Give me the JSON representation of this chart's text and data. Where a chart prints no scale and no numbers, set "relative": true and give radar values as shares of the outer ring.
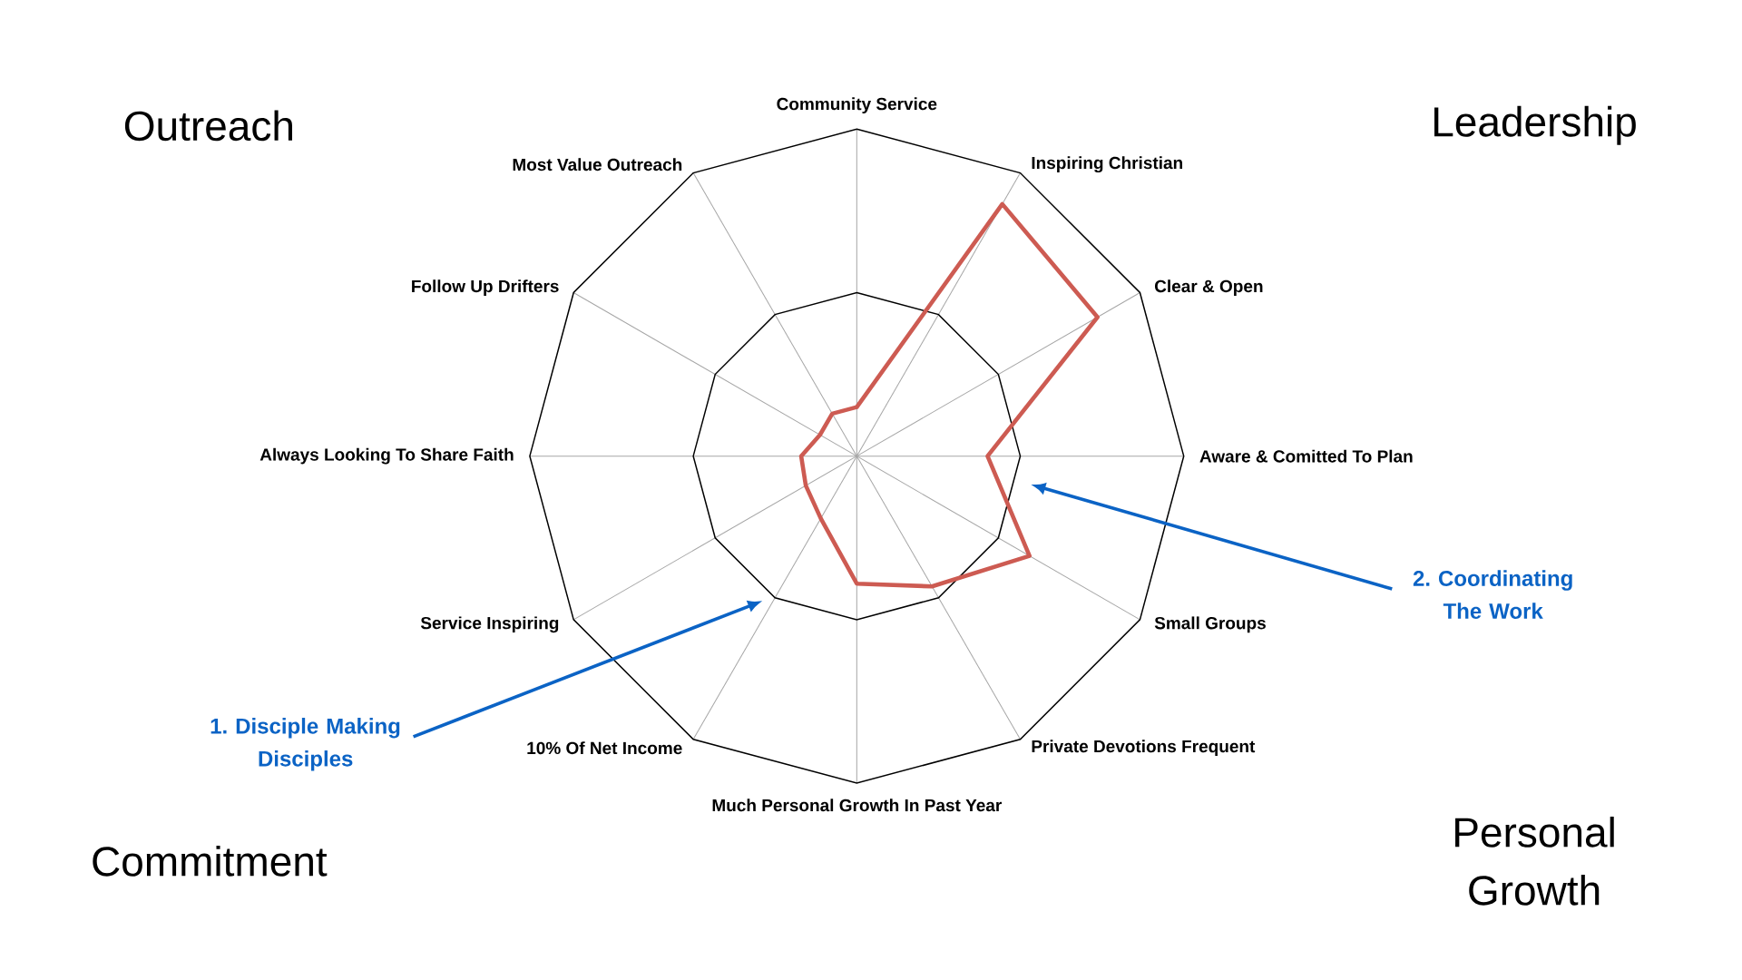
{
  "chart_data": {
    "type": "radar",
    "relative": true,
    "grid": true,
    "categories": [
      "Community Service",
      "Inspiring Christian",
      "Clear & Open",
      "Aware & Comitted To Plan",
      "Small Groups",
      "Private Devotions Frequent",
      "Much Personal Growth In Past Year",
      "10% Of Net Income",
      "Service Inspiring",
      "Always Looking To Share Faith",
      "Follow Up Drifters",
      "Most Value Outreach"
    ],
    "series": [
      {
        "color": "#cd5b52",
        "values": [
          0.15,
          0.89,
          0.85,
          0.4,
          0.61,
          0.46,
          0.39,
          0.22,
          0.18,
          0.17,
          0.13,
          0.15
        ]
      }
    ],
    "annotations": [
      "Outreach",
      "Leadership",
      "Commitment",
      "Personal Growth",
      "1. Disciple Making Disciples",
      "2. Coordinating The Work"
    ]
  }
}
